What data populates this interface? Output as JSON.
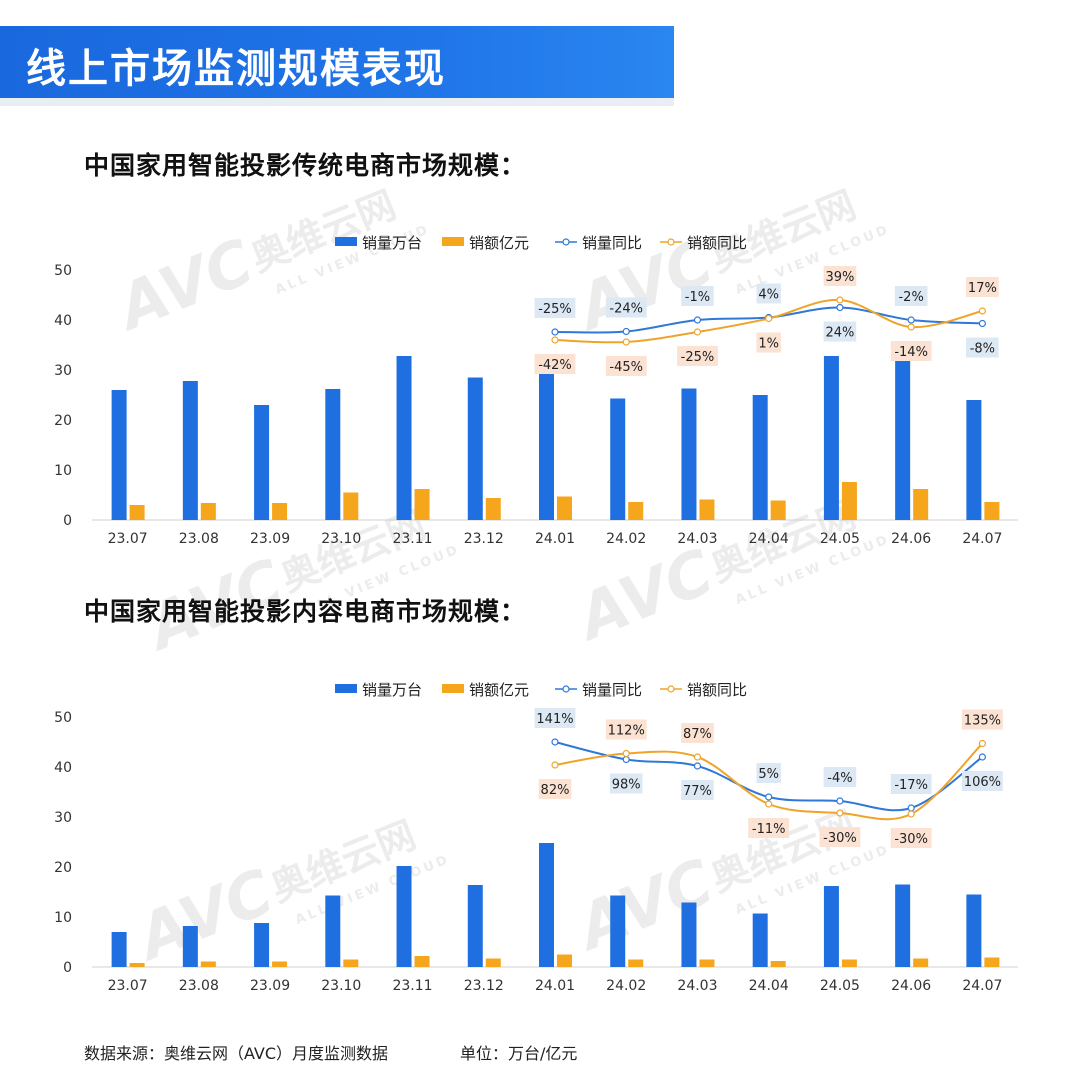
{
  "header": {
    "title": "线上市场监测规模表现"
  },
  "colors": {
    "volume_bar": "#1f6fe0",
    "amount_bar": "#f5a61d",
    "volume_line": "#2f78d6",
    "amount_line": "#f0a32a",
    "label_blue_bg": "#dde8f5",
    "label_orange_bg": "#fbe2d2",
    "banner": "#1f72e6"
  },
  "watermark": {
    "logo": "AVC",
    "brand_cn": "奥维云网",
    "brand_en": "ALL VIEW CLOUD"
  },
  "footer": {
    "source": "数据来源：奥维云网（AVC）月度监测数据",
    "unit": "单位：万台/亿元"
  },
  "chart_data": [
    {
      "type": "bar",
      "title": "中国家用智能投影传统电商市场规模：",
      "categories": [
        "23.07",
        "23.08",
        "23.09",
        "23.10",
        "23.11",
        "23.12",
        "24.01",
        "24.02",
        "24.03",
        "24.04",
        "24.05",
        "24.06",
        "24.07"
      ],
      "ylim": [
        0,
        50
      ],
      "yticks": [
        0,
        10,
        20,
        30,
        40,
        50
      ],
      "legend": [
        "销量万台",
        "销额亿元",
        "销量同比",
        "销额同比"
      ],
      "legend_position": "top",
      "grid": false,
      "series": [
        {
          "name": "销量万台",
          "kind": "bar",
          "values": [
            26.0,
            27.8,
            23.0,
            26.2,
            32.8,
            28.5,
            30.0,
            24.3,
            26.3,
            25.0,
            32.8,
            32.7,
            24.0
          ]
        },
        {
          "name": "销额亿元",
          "kind": "bar",
          "values": [
            3.0,
            3.4,
            3.4,
            5.5,
            6.2,
            4.4,
            4.7,
            3.6,
            4.1,
            3.9,
            7.6,
            6.2,
            3.6
          ]
        }
      ],
      "yoy": [
        {
          "name": "销量同比",
          "start_index": 6,
          "labels": [
            "-25%",
            "-24%",
            "-1%",
            "4%",
            "24%",
            "-2%",
            "-8%"
          ],
          "label_side": [
            "above",
            "above",
            "above",
            "above",
            "below",
            "above",
            "below"
          ]
        },
        {
          "name": "销额同比",
          "start_index": 6,
          "labels": [
            "-42%",
            "-45%",
            "-25%",
            "1%",
            "39%",
            "-14%",
            "17%"
          ],
          "label_side": [
            "below",
            "below",
            "below",
            "below",
            "above",
            "below",
            "above"
          ]
        }
      ]
    },
    {
      "type": "bar",
      "title": "中国家用智能投影内容电商市场规模：",
      "categories": [
        "23.07",
        "23.08",
        "23.09",
        "23.10",
        "23.11",
        "23.12",
        "24.01",
        "24.02",
        "24.03",
        "24.04",
        "24.05",
        "24.06",
        "24.07"
      ],
      "ylim": [
        0,
        50
      ],
      "yticks": [
        0,
        10,
        20,
        30,
        40,
        50
      ],
      "legend": [
        "销量万台",
        "销额亿元",
        "销量同比",
        "销额同比"
      ],
      "legend_position": "top",
      "grid": false,
      "series": [
        {
          "name": "销量万台",
          "kind": "bar",
          "values": [
            7.0,
            8.2,
            8.8,
            14.3,
            20.2,
            16.4,
            24.8,
            14.3,
            12.9,
            10.7,
            16.2,
            16.5,
            14.5
          ]
        },
        {
          "name": "销额亿元",
          "kind": "bar",
          "values": [
            0.8,
            1.1,
            1.1,
            1.5,
            2.2,
            1.7,
            2.5,
            1.5,
            1.5,
            1.2,
            1.5,
            1.7,
            1.9
          ]
        }
      ],
      "yoy": [
        {
          "name": "销量同比",
          "start_index": 6,
          "labels": [
            "141%",
            "98%",
            "77%",
            "5%",
            "-4%",
            "-17%",
            "106%"
          ],
          "label_side": [
            "above",
            "below",
            "below",
            "above",
            "above",
            "above",
            "below"
          ]
        },
        {
          "name": "销额同比",
          "start_index": 6,
          "labels": [
            "82%",
            "112%",
            "87%",
            "-11%",
            "-30%",
            "-30%",
            "135%"
          ],
          "label_side": [
            "below",
            "above",
            "above",
            "below",
            "below",
            "below",
            "above"
          ]
        }
      ]
    }
  ]
}
